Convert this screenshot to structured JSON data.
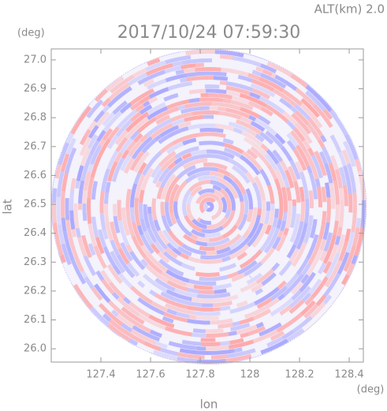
{
  "chart_data": {
    "type": "radar-ppi",
    "subtitle": "ALT(km) 2.0",
    "title": "2017/10/24 07:59:30",
    "y_unit": "(deg)",
    "y_label": "lat",
    "x_unit": "(deg)",
    "x_label": "lon",
    "xlim": [
      127.2,
      128.457
    ],
    "ylim": [
      25.954,
      27.038
    ],
    "xticks": [
      127.4,
      127.6,
      127.8,
      128.0,
      128.2,
      128.4
    ],
    "yticks": [
      {
        "value": 26,
        "label": "26.0"
      },
      26.1,
      26.2,
      26.3,
      26.4,
      26.5,
      26.6,
      26.7,
      26.8,
      26.9,
      {
        "value": 27,
        "label": "27.0"
      }
    ],
    "colors": {
      "positive": "#ff9c9c",
      "negative": "#9c9cff"
    }
  }
}
